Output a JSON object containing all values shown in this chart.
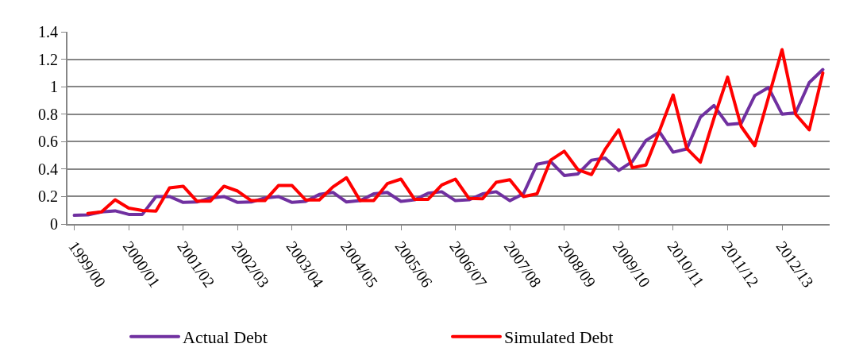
{
  "chart_data": {
    "type": "line",
    "categories": [
      "1999/00",
      null,
      null,
      null,
      "2000/01",
      null,
      null,
      null,
      "2001/02",
      null,
      null,
      null,
      "2002/03",
      null,
      null,
      null,
      "2003/04",
      null,
      null,
      null,
      "2004/05",
      null,
      null,
      null,
      "2005/06",
      null,
      null,
      null,
      "2006/07",
      null,
      null,
      null,
      "2007/08",
      null,
      null,
      null,
      "2008/09",
      null,
      null,
      null,
      "2009/10",
      null,
      null,
      null,
      "2010/11",
      null,
      null,
      null,
      "2011/12",
      null,
      null,
      null,
      "2012/13",
      null,
      null,
      null
    ],
    "series": [
      {
        "name": "Actual Debt",
        "color": "#7030a0",
        "values": [
          0.063,
          0.067,
          0.088,
          0.096,
          0.07,
          0.07,
          0.2,
          0.2,
          0.157,
          0.16,
          0.19,
          0.2,
          0.157,
          0.16,
          0.19,
          0.2,
          0.157,
          0.165,
          0.215,
          0.23,
          0.16,
          0.17,
          0.22,
          0.23,
          0.165,
          0.176,
          0.224,
          0.235,
          0.17,
          0.176,
          0.22,
          0.235,
          0.17,
          0.22,
          0.435,
          0.455,
          0.353,
          0.365,
          0.465,
          0.48,
          0.39,
          0.455,
          0.608,
          0.67,
          0.523,
          0.547,
          0.778,
          0.863,
          0.725,
          0.733,
          0.935,
          0.994,
          0.8,
          0.81,
          1.03,
          1.125
        ]
      },
      {
        "name": "Simulated Debt",
        "color": "#ff0000",
        "values": [
          null,
          0.076,
          0.088,
          0.176,
          0.116,
          0.098,
          0.094,
          0.263,
          0.275,
          0.167,
          0.167,
          0.275,
          0.24,
          0.17,
          0.17,
          0.28,
          0.28,
          0.175,
          0.175,
          0.27,
          0.337,
          0.17,
          0.17,
          0.294,
          0.327,
          0.18,
          0.18,
          0.284,
          0.327,
          0.186,
          0.184,
          0.304,
          0.323,
          0.2,
          0.22,
          0.465,
          0.53,
          0.396,
          0.36,
          0.543,
          0.686,
          0.41,
          0.43,
          0.68,
          0.94,
          0.55,
          0.45,
          0.77,
          1.07,
          0.71,
          0.57,
          0.92,
          1.27,
          0.8,
          0.686,
          1.1
        ]
      }
    ],
    "ylim": [
      0,
      1.4
    ],
    "yticks": [
      0,
      0.2,
      0.4,
      0.6,
      0.8,
      1,
      1.2,
      1.4
    ],
    "grid": "y",
    "legend": "bottom",
    "marker": "none",
    "line_style": "solid"
  }
}
